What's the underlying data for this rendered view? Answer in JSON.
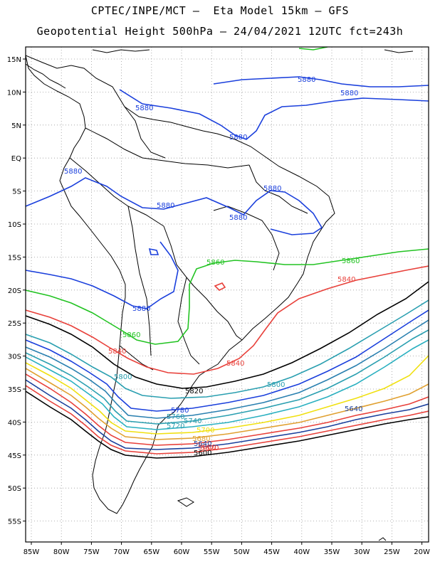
{
  "title_line1": "CPTEC/INPE/MCT –  Eta Model 15km – GFS",
  "title_line2": "Geopotential Height 500hPa – 24/04/2021 12UTC fct=243h",
  "lat_labels": [
    "15N",
    "10N",
    "5N",
    "EQ",
    "5S",
    "10S",
    "15S",
    "20S",
    "25S",
    "30S",
    "35S",
    "40S",
    "45S",
    "50S",
    "55S"
  ],
  "lon_labels": [
    "85W",
    "80W",
    "75W",
    "70W",
    "65W",
    "60W",
    "55W",
    "50W",
    "45W",
    "40W",
    "35W",
    "30W",
    "25W",
    "20W"
  ],
  "contour_labels": [
    {
      "text": "5880",
      "color": "#1a3fdc"
    },
    {
      "text": "5880",
      "color": "#1a3fdc"
    },
    {
      "text": "5880",
      "color": "#1a3fdc"
    },
    {
      "text": "5880",
      "color": "#1a3fdc"
    },
    {
      "text": "5880",
      "color": "#1a3fdc"
    },
    {
      "text": "5880",
      "color": "#1a3fdc"
    },
    {
      "text": "5880",
      "color": "#1a3fdc"
    },
    {
      "text": "5880",
      "color": "#1a3fdc"
    },
    {
      "text": "5880",
      "color": "#1a3fdc"
    },
    {
      "text": "5880",
      "color": "#1a3fdc"
    },
    {
      "text": "5860",
      "color": "#22c322"
    },
    {
      "text": "5860",
      "color": "#22c322"
    },
    {
      "text": "5860",
      "color": "#22c322"
    },
    {
      "text": "5840",
      "color": "#e8403a"
    },
    {
      "text": "5840",
      "color": "#e8403a"
    },
    {
      "text": "5840",
      "color": "#e8403a"
    },
    {
      "text": "5820",
      "color": "#000000"
    },
    {
      "text": "5800",
      "color": "#2a9fb0"
    },
    {
      "text": "5800",
      "color": "#2a9fb0"
    },
    {
      "text": "5780",
      "color": "#1a3fdc"
    },
    {
      "text": "5760",
      "color": "#2a9fb0"
    },
    {
      "text": "5740",
      "color": "#2a9fb0"
    },
    {
      "text": "5720",
      "color": "#2a9fb0"
    },
    {
      "text": "5700",
      "color": "#f0e010"
    },
    {
      "text": "5680",
      "color": "#e0a030"
    },
    {
      "text": "5660",
      "color": "#e8403a"
    },
    {
      "text": "5640",
      "color": "#1a3f9c"
    },
    {
      "text": "5640",
      "color": "#1a3f9c"
    },
    {
      "text": "5620",
      "color": "#e8403a"
    },
    {
      "text": "5600",
      "color": "#000000"
    }
  ]
}
